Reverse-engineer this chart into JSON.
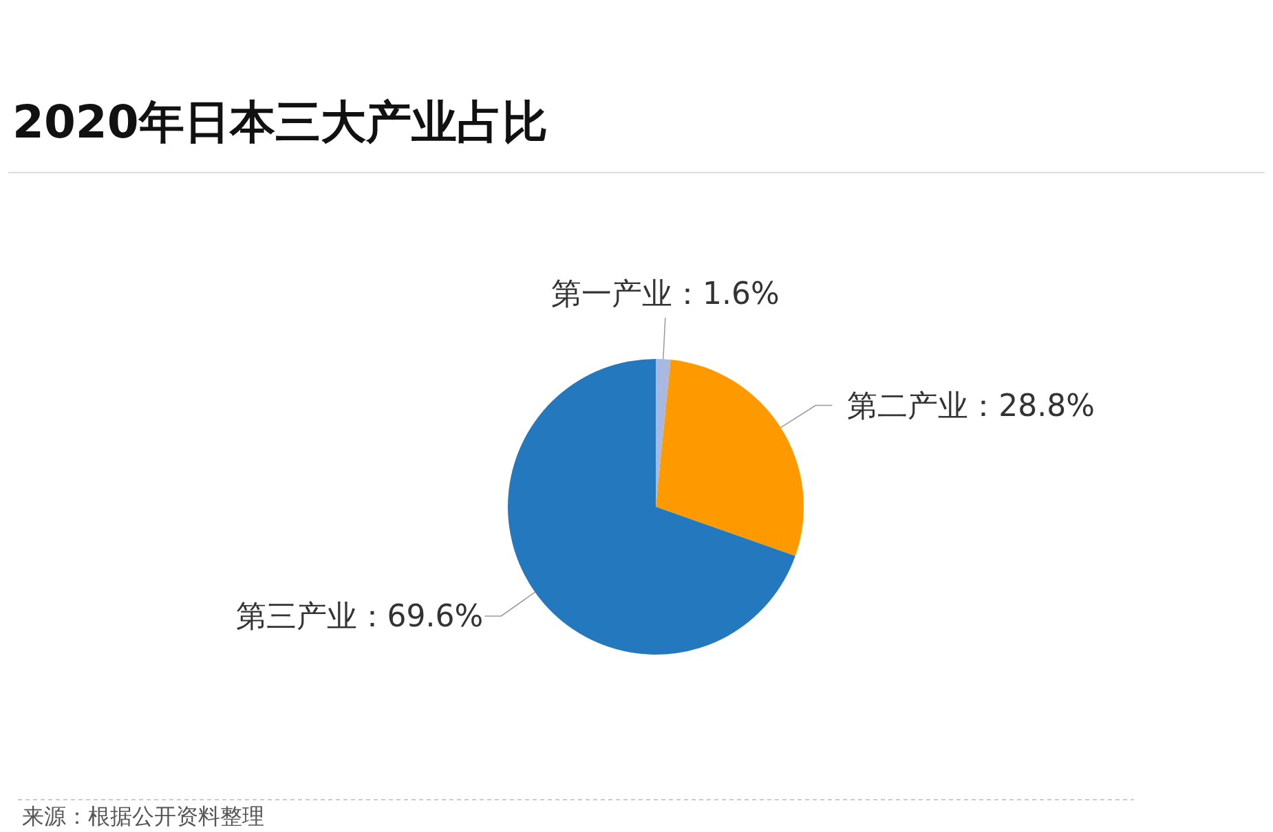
{
  "chart_data": {
    "type": "pie",
    "title": "2020年日本三大产业占比",
    "categories": [
      "第一产业",
      "第二产业",
      "第三产业"
    ],
    "values": [
      1.6,
      28.8,
      69.6
    ],
    "value_labels": [
      "1.6%",
      "28.8%",
      "69.6%"
    ],
    "colors": [
      "#a9b8e0",
      "#ff9900",
      "#2478be"
    ],
    "annotations": [
      "来源：根据公开资料整理"
    ]
  }
}
